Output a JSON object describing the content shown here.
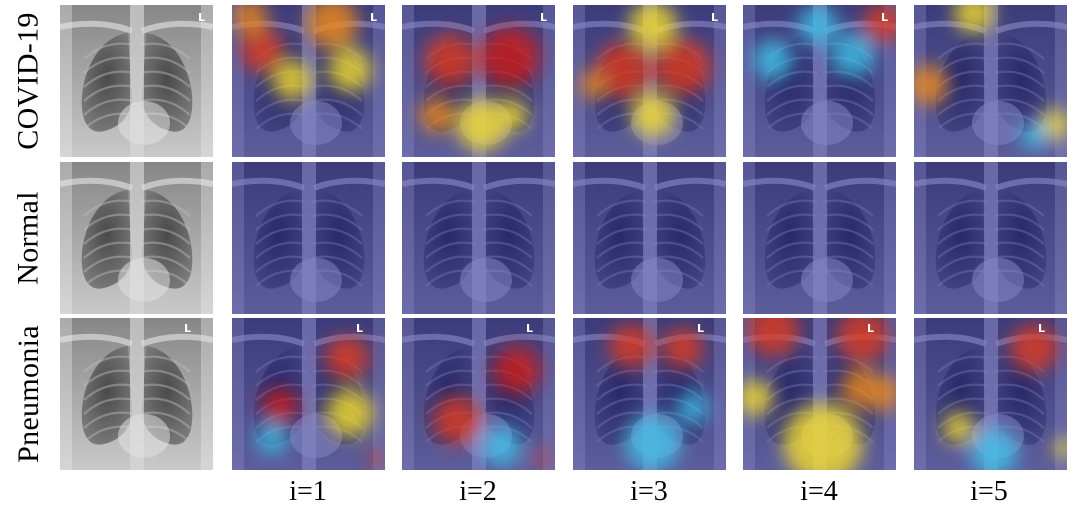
{
  "rows": [
    {
      "label": "COVID-19"
    },
    {
      "label": "Normal"
    },
    {
      "label": "Pneumonia"
    }
  ],
  "columns": [
    {
      "label": ""
    },
    {
      "label": "i=1"
    },
    {
      "label": "i=2"
    },
    {
      "label": "i=3"
    },
    {
      "label": "i=4"
    },
    {
      "label": "i=5"
    }
  ],
  "cells": [
    [
      {
        "kind": "xray",
        "marker": "L"
      },
      {
        "kind": "heatmap",
        "marker": "L"
      },
      {
        "kind": "heatmap",
        "marker": "L"
      },
      {
        "kind": "heatmap",
        "marker": "L"
      },
      {
        "kind": "heatmap",
        "marker": "L"
      },
      {
        "kind": "heatmap",
        "marker": ""
      }
    ],
    [
      {
        "kind": "xray",
        "marker": ""
      },
      {
        "kind": "heatmap",
        "marker": ""
      },
      {
        "kind": "heatmap",
        "marker": ""
      },
      {
        "kind": "heatmap",
        "marker": ""
      },
      {
        "kind": "heatmap",
        "marker": ""
      },
      {
        "kind": "heatmap",
        "marker": ""
      }
    ],
    [
      {
        "kind": "xray",
        "marker": "L"
      },
      {
        "kind": "heatmap",
        "marker": "L"
      },
      {
        "kind": "heatmap",
        "marker": "L"
      },
      {
        "kind": "heatmap",
        "marker": "L"
      },
      {
        "kind": "heatmap",
        "marker": "L"
      },
      {
        "kind": "heatmap",
        "marker": "L"
      }
    ]
  ]
}
